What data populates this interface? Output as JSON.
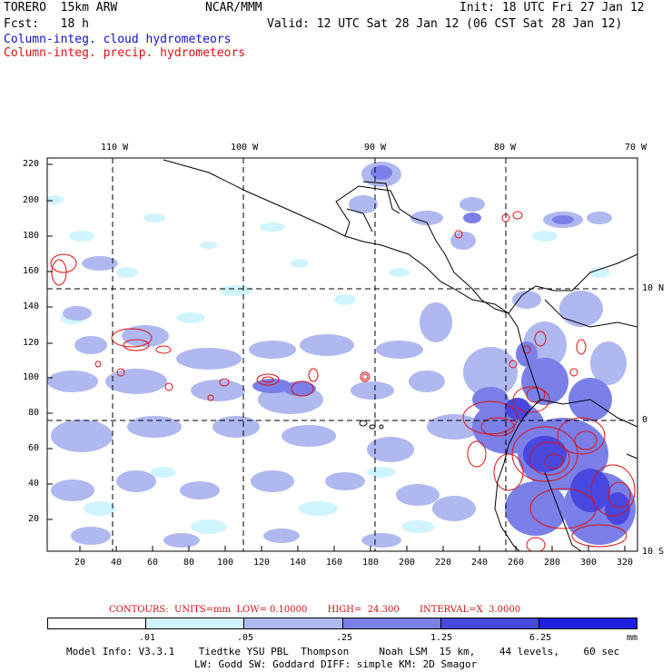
{
  "header": {
    "model": "TORERO  15km ARW",
    "org": "NCAR/MMM",
    "init": "Init: 18 UTC Fri 27 Jan 12",
    "fcst": "Fcst:   18 h",
    "valid": "Valid: 12 UTC Sat 28 Jan 12 (06 CST Sat 28 Jan 12)",
    "field1": "Column-integ. cloud hydrometeors",
    "field2": "Column-integ. precip. hydrometeors"
  },
  "map": {
    "lon_labels": [
      "110 W",
      "100 W",
      "90 W",
      "80 W",
      "70 W"
    ],
    "lat_labels": [
      "10 N",
      "0",
      "10 S"
    ],
    "y_ticks": [
      "220",
      "200",
      "180",
      "160",
      "140",
      "120",
      "100",
      "80",
      "60",
      "40",
      "20"
    ],
    "x_ticks": [
      "20",
      "40",
      "60",
      "80",
      "100",
      "120",
      "140",
      "160",
      "180",
      "200",
      "220",
      "240",
      "260",
      "280",
      "300",
      "320"
    ]
  },
  "contours": {
    "text": "CONTOURS:  UNITS=mm  LOW= 0.10000       HIGH=  24.300       INTERVAL=X  3.0000"
  },
  "colorbar": {
    "levels": [
      ".01",
      ".05",
      ".25",
      "1.25",
      "6.25"
    ],
    "units": "mm",
    "colors": [
      "#ffffff",
      "#d0f4ff",
      "#b0b8f0",
      "#7a80e8",
      "#4848e0",
      "#2020e0"
    ]
  },
  "footer": {
    "line1": "Model Info: V3.3.1    Tiedtke YSU PBL  Thompson     Noah LSM  15 km,    44 levels,    60 sec",
    "line2": "LW: Godd SW: Goddard DIFF: simple KM: 2D Smagor"
  }
}
